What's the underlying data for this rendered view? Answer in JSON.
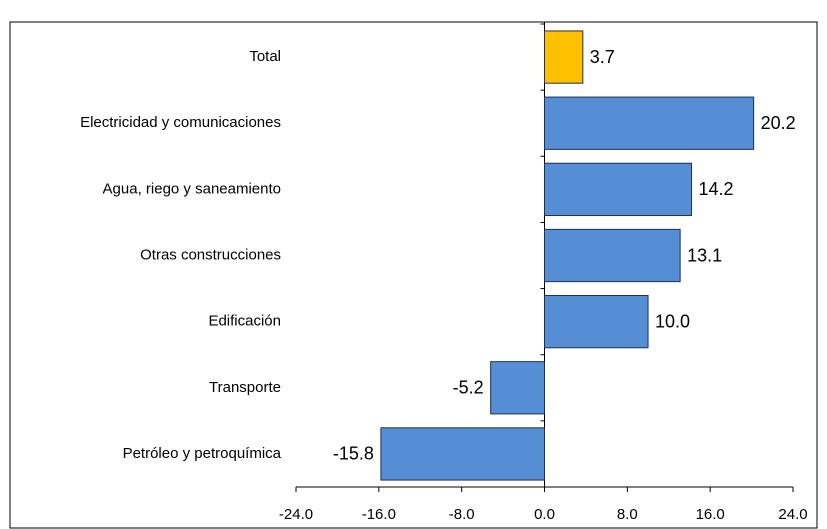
{
  "chart_data": {
    "type": "bar",
    "orientation": "horizontal",
    "categories": [
      "Total",
      "Electricidad y comunicaciones",
      "Agua, riego y saneamiento",
      "Otras construcciones",
      "Edificación",
      "Transporte",
      "Petróleo y petroquímica"
    ],
    "values": [
      3.7,
      20.2,
      14.2,
      13.1,
      10.0,
      -5.2,
      -15.8
    ],
    "value_labels": [
      "3.7",
      "20.2",
      "14.2",
      "13.1",
      "10.0",
      "-5.2",
      "-15.8"
    ],
    "colors": [
      "#ffc000",
      "#558ed5",
      "#558ed5",
      "#558ed5",
      "#558ed5",
      "#558ed5",
      "#558ed5"
    ],
    "xlim": [
      -24,
      24
    ],
    "xticks": [
      {
        "value": -24,
        "label": "-24.0"
      },
      {
        "value": -16,
        "label": "-16.0"
      },
      {
        "value": -8,
        "label": "-8.0"
      },
      {
        "value": 0,
        "label": "0.0"
      },
      {
        "value": 8,
        "label": "8.0"
      },
      {
        "value": 16,
        "label": "16.0"
      },
      {
        "value": 24,
        "label": "24.0"
      }
    ]
  }
}
